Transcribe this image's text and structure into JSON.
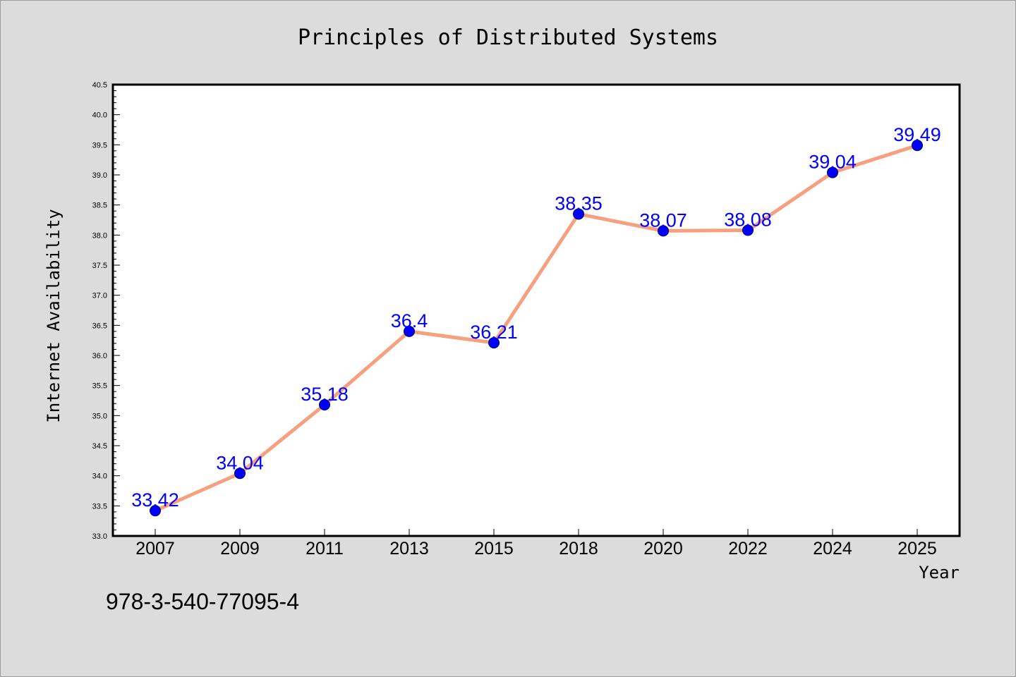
{
  "chart_data": {
    "type": "line",
    "title": "Principles of Distributed Systems",
    "xlabel": "Year",
    "ylabel": "Internet Availability",
    "categories": [
      "2007",
      "2009",
      "2011",
      "2013",
      "2015",
      "2018",
      "2020",
      "2022",
      "2024",
      "2025"
    ],
    "series": [
      {
        "values": [
          33.42,
          34.04,
          35.18,
          36.4,
          36.21,
          38.35,
          38.07,
          38.08,
          39.04,
          39.49
        ],
        "point_labels": [
          "33.42",
          "34.04",
          "35.18",
          "36.4",
          "36.21",
          "38.35",
          "38.07",
          "38.08",
          "39.04",
          "39.49"
        ],
        "line_color": "#f5a07e",
        "marker_color": "#0000ff"
      }
    ],
    "ylim": [
      33.0,
      40.5
    ],
    "yticks": [
      "33.0",
      "33.5",
      "34.0",
      "34.5",
      "35.0",
      "35.5",
      "36.0",
      "36.5",
      "37.0",
      "37.5",
      "38.0",
      "38.5",
      "39.0",
      "39.5",
      "40.0",
      "40.5"
    ],
    "grid": false,
    "legend": "none"
  },
  "footer": {
    "isbn": "978-3-540-77095-4"
  },
  "colors": {
    "background": "#dcdcdc",
    "plot_area": "#ffffff",
    "label_color": "#0000ff"
  }
}
